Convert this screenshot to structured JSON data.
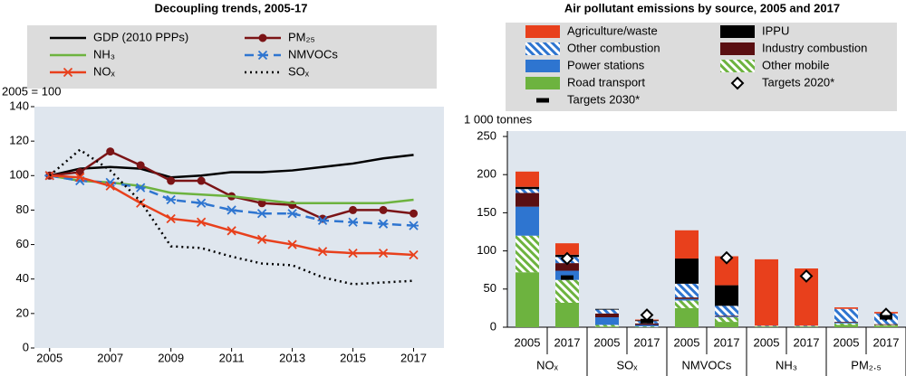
{
  "chart_data": [
    {
      "type": "line",
      "title": "Decoupling trends, 2005-17",
      "y_label": "2005 = 100",
      "x": [
        2005,
        2006,
        2007,
        2008,
        2009,
        2010,
        2011,
        2012,
        2013,
        2014,
        2015,
        2016,
        2017
      ],
      "xlim": [
        2004.5,
        2018
      ],
      "xticks": [
        2005,
        2007,
        2009,
        2011,
        2013,
        2015,
        2017
      ],
      "ylim": [
        0,
        140
      ],
      "yticks": [
        0,
        20,
        40,
        60,
        80,
        100,
        120,
        140
      ],
      "series": [
        {
          "name": "GDP (2010 PPPs)",
          "color": "#000000",
          "dash": "solid",
          "marker": "none",
          "values": [
            100,
            104,
            105,
            104,
            99,
            100,
            102,
            102,
            103,
            105,
            107,
            110,
            112
          ]
        },
        {
          "name": "PM₂₅",
          "color": "#7b1416",
          "dash": "solid",
          "marker": "circle",
          "values": [
            100,
            102,
            114,
            106,
            97,
            97,
            88,
            84,
            83,
            75,
            80,
            80,
            78
          ]
        },
        {
          "name": "NH₃",
          "color": "#6db33f",
          "dash": "solid",
          "marker": "none",
          "values": [
            100,
            97,
            96,
            94,
            90,
            89,
            88,
            86,
            84,
            84,
            84,
            84,
            86
          ]
        },
        {
          "name": "NMVOCs",
          "color": "#2e75d0",
          "dash": "dashed",
          "marker": "asterisk",
          "values": [
            100,
            97,
            96,
            93,
            86,
            84,
            80,
            78,
            78,
            74,
            73,
            72,
            71
          ]
        },
        {
          "name": "NOₓ",
          "color": "#e8401c",
          "dash": "solid",
          "marker": "x",
          "values": [
            100,
            99,
            94,
            84,
            75,
            73,
            68,
            63,
            60,
            56,
            55,
            55,
            54
          ]
        },
        {
          "name": "SOₓ",
          "color": "#000000",
          "dash": "dotted",
          "marker": "none",
          "values": [
            100,
            115,
            103,
            85,
            59,
            58,
            53,
            49,
            48,
            41,
            37,
            38,
            39
          ]
        }
      ]
    },
    {
      "type": "bar",
      "stacked": true,
      "title": "Air pollutant emissions by source, 2005 and 2017",
      "y_label": "1 000 tonnes",
      "categories": [
        "2005",
        "2017",
        "2005",
        "2017",
        "2005",
        "2017",
        "2005",
        "2017",
        "2005",
        "2017"
      ],
      "groups": [
        "NOₓ",
        "SOₓ",
        "NMVOCs",
        "NH₃",
        "PM₂.₅"
      ],
      "ylim": [
        0,
        250
      ],
      "yticks": [
        0,
        50,
        100,
        150,
        200,
        250
      ],
      "series": [
        {
          "name": "Agriculture/waste",
          "color": "#e8401c",
          "hatched": false,
          "values": [
            20,
            15,
            0,
            1,
            37,
            38,
            87,
            75,
            2,
            2
          ]
        },
        {
          "name": "IPPU",
          "color": "#000000",
          "hatched": false,
          "values": [
            3,
            3,
            1,
            1,
            33,
            27,
            0,
            0,
            0,
            0
          ]
        },
        {
          "name": "Other combustion",
          "color": "#2e75d0",
          "hatched": true,
          "values": [
            5,
            8,
            5,
            3,
            18,
            13,
            1,
            1,
            17,
            14
          ]
        },
        {
          "name": "Industry combustion",
          "color": "#5a0f12",
          "hatched": false,
          "values": [
            18,
            10,
            5,
            2,
            2,
            1,
            0,
            0,
            1,
            1
          ]
        },
        {
          "name": "Power stations",
          "color": "#2e75d0",
          "hatched": false,
          "values": [
            38,
            12,
            10,
            2,
            2,
            1,
            0,
            0,
            1,
            0
          ]
        },
        {
          "name": "Other mobile",
          "color": "#6db33f",
          "hatched": true,
          "values": [
            48,
            30,
            2,
            1,
            10,
            6,
            0,
            0,
            2,
            1
          ]
        },
        {
          "name": "Road transport",
          "color": "#6db33f",
          "hatched": false,
          "values": [
            72,
            32,
            1,
            0,
            25,
            7,
            1,
            1,
            3,
            2
          ]
        }
      ],
      "markers": [
        {
          "name": "Targets 2020*",
          "marker": "diamond",
          "color": "#000000",
          "values": [
            null,
            90,
            null,
            16,
            null,
            91,
            null,
            67,
            null,
            17
          ]
        },
        {
          "name": "Targets 2030*",
          "marker": "dash",
          "color": "#000000",
          "values": [
            null,
            65,
            null,
            8,
            null,
            null,
            null,
            null,
            null,
            13
          ]
        }
      ]
    }
  ]
}
